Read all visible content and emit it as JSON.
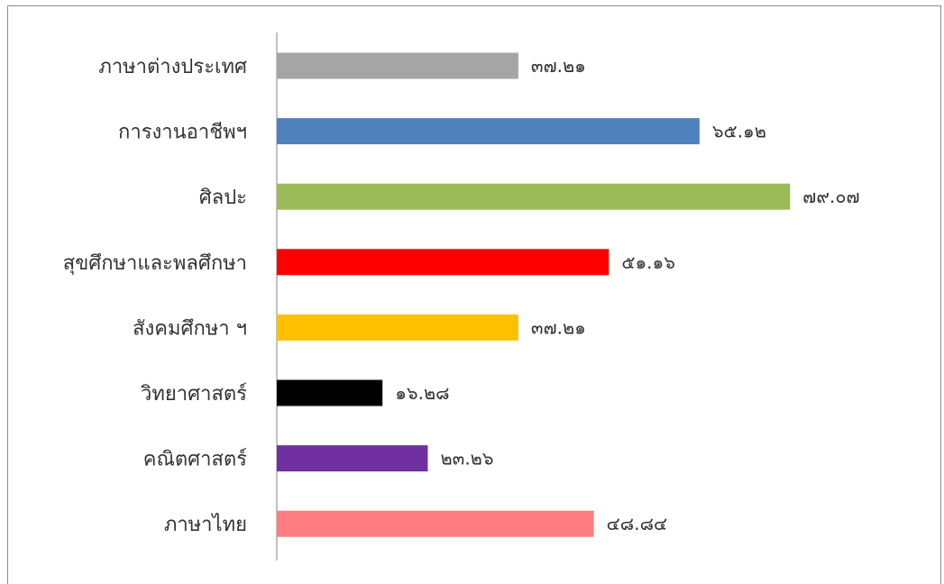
{
  "chart_data": {
    "type": "bar",
    "orientation": "horizontal",
    "title": "",
    "xlabel": "",
    "ylabel": "",
    "categories": [
      "ภาษาต่างประเทศ",
      "การงานอาชีพฯ",
      "ศิลปะ",
      "สุขศึกษาและพลศึกษา",
      "สังคมศึกษา ฯ",
      "วิทยาศาสตร์",
      "คณิตศาสตร์",
      "ภาษาไทย"
    ],
    "values": [
      37.21,
      65.12,
      79.07,
      51.16,
      37.21,
      16.28,
      23.26,
      48.84
    ],
    "value_labels": [
      "๓๗.๒๑",
      "๖๕.๑๒",
      "๗๙.๐๗",
      "๕๑.๑๖",
      "๓๗.๒๑",
      "๑๖.๒๘",
      "๒๓.๒๖",
      "๔๘.๘๔"
    ],
    "colors": [
      "#a5a5a5",
      "#4f81bd",
      "#9bbb59",
      "#ff0000",
      "#ffc000",
      "#000000",
      "#7030a0",
      "#ff7c80"
    ],
    "xlim": [
      0,
      100
    ],
    "grid": false,
    "legend": "none"
  }
}
